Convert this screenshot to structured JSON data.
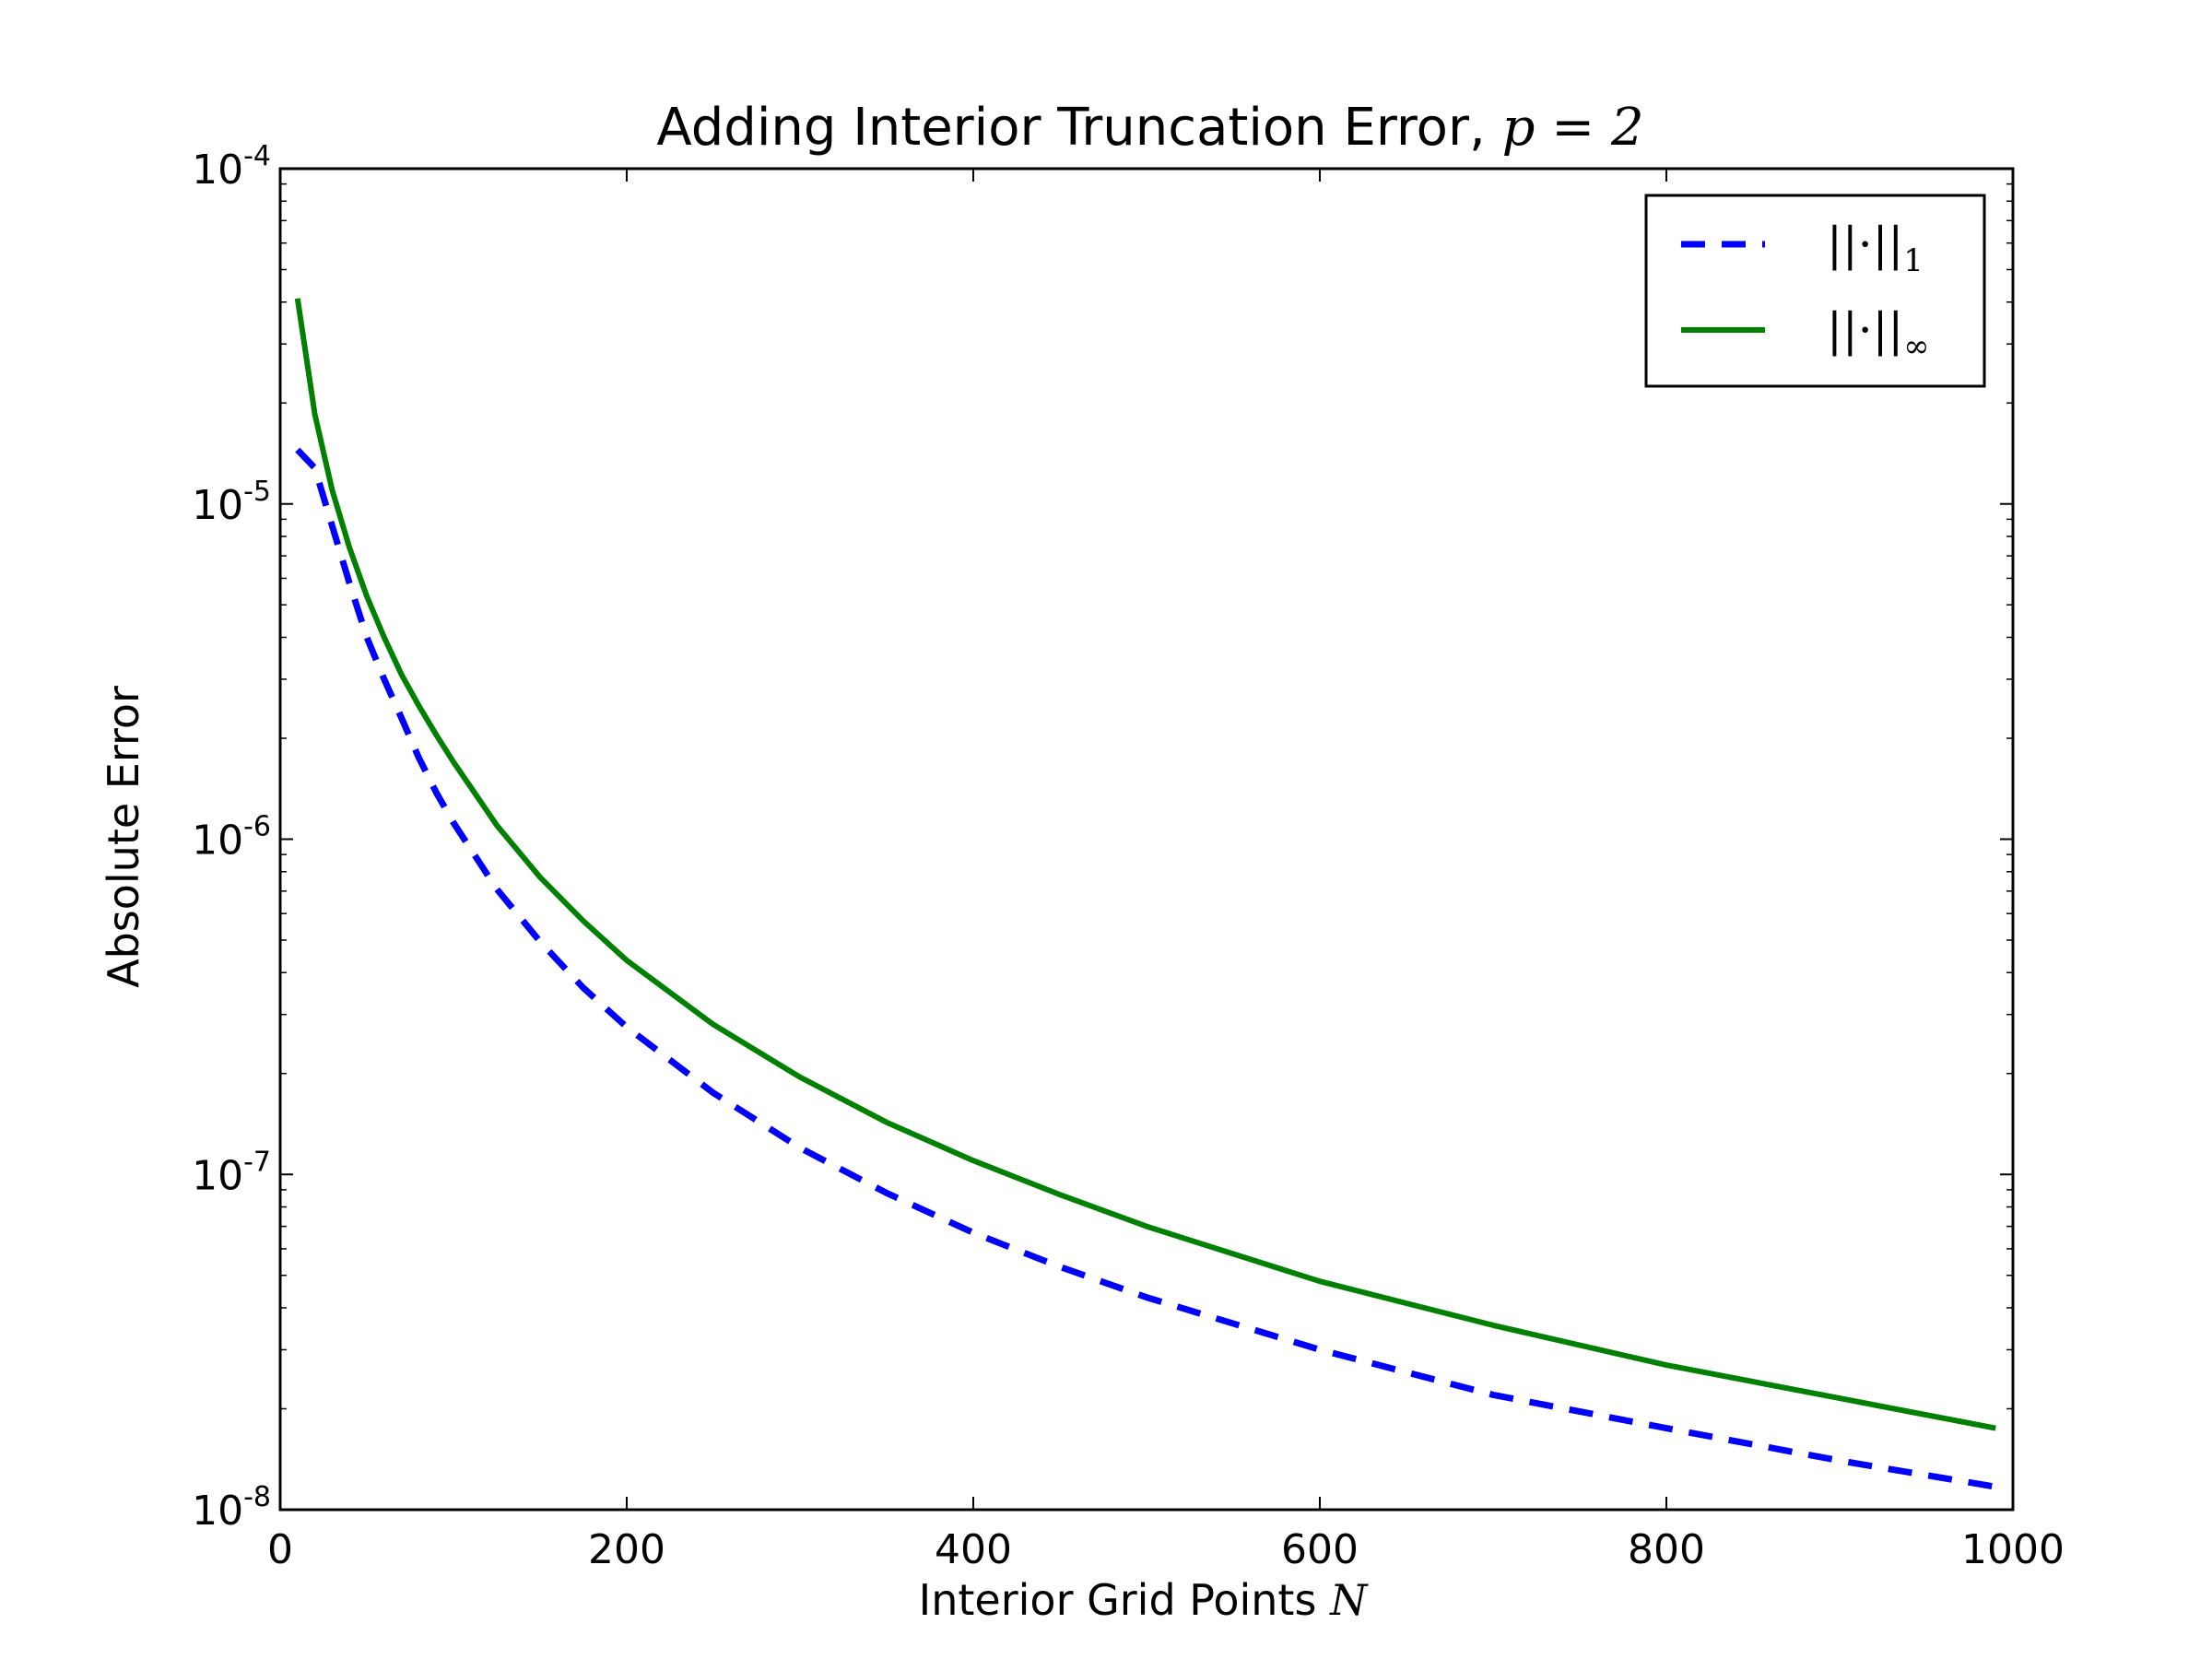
{
  "chart_data": {
    "type": "line",
    "title": {
      "text": "Adding Interior Truncation Error, ",
      "math": "p = 2"
    },
    "xlabel": {
      "text": "Interior Grid Points ",
      "math": "N"
    },
    "ylabel": "Absolute Error",
    "xlim": [
      0,
      1000
    ],
    "ylim": [
      1e-08,
      0.0001
    ],
    "yscale": "log",
    "x_ticks": [
      "0",
      "200",
      "400",
      "600",
      "800",
      "1000"
    ],
    "y_ticks": [
      {
        "base": "10",
        "exp": "-8"
      },
      {
        "base": "10",
        "exp": "-7"
      },
      {
        "base": "10",
        "exp": "-6"
      },
      {
        "base": "10",
        "exp": "-5"
      },
      {
        "base": "10",
        "exp": "-4"
      }
    ],
    "grid": false,
    "legend_position": "top-right",
    "series": [
      {
        "name": "||·||₁",
        "legend_main": "||·||",
        "legend_sub": "1",
        "color": "#0000ff",
        "style": "dashed",
        "x": [
          10,
          20,
          30,
          40,
          50,
          60,
          70,
          80,
          90,
          100,
          125,
          150,
          175,
          200,
          250,
          300,
          350,
          400,
          450,
          500,
          600,
          700,
          800,
          900,
          990
        ],
        "y": [
          1.45e-05,
          1.28e-05,
          8.6e-06,
          5.8e-06,
          4e-06,
          3e-06,
          2.3e-06,
          1.75e-06,
          1.38e-06,
          1.12e-06,
          7.1e-07,
          4.95e-07,
          3.6e-07,
          2.75e-07,
          1.75e-07,
          1.2e-07,
          8.8e-08,
          6.7e-08,
          5.3e-08,
          4.3e-08,
          3e-08,
          2.2e-08,
          1.75e-08,
          1.4e-08,
          1.17e-08
        ]
      },
      {
        "name": "||·||∞",
        "legend_main": "||·||",
        "legend_sub": "∞",
        "color": "#008000",
        "style": "solid",
        "x": [
          10,
          20,
          30,
          40,
          50,
          60,
          70,
          80,
          90,
          100,
          125,
          150,
          175,
          200,
          250,
          300,
          350,
          400,
          450,
          500,
          600,
          700,
          800,
          900,
          990
        ],
        "y": [
          4.1e-05,
          1.85e-05,
          1.1e-05,
          7.4e-06,
          5.3e-06,
          4e-06,
          3.1e-06,
          2.5e-06,
          2.05e-06,
          1.7e-06,
          1.1e-06,
          7.7e-07,
          5.7e-07,
          4.35e-07,
          2.8e-07,
          1.95e-07,
          1.43e-07,
          1.1e-07,
          8.7e-08,
          7e-08,
          4.8e-08,
          3.55e-08,
          2.7e-08,
          2.15e-08,
          1.75e-08
        ]
      }
    ]
  }
}
